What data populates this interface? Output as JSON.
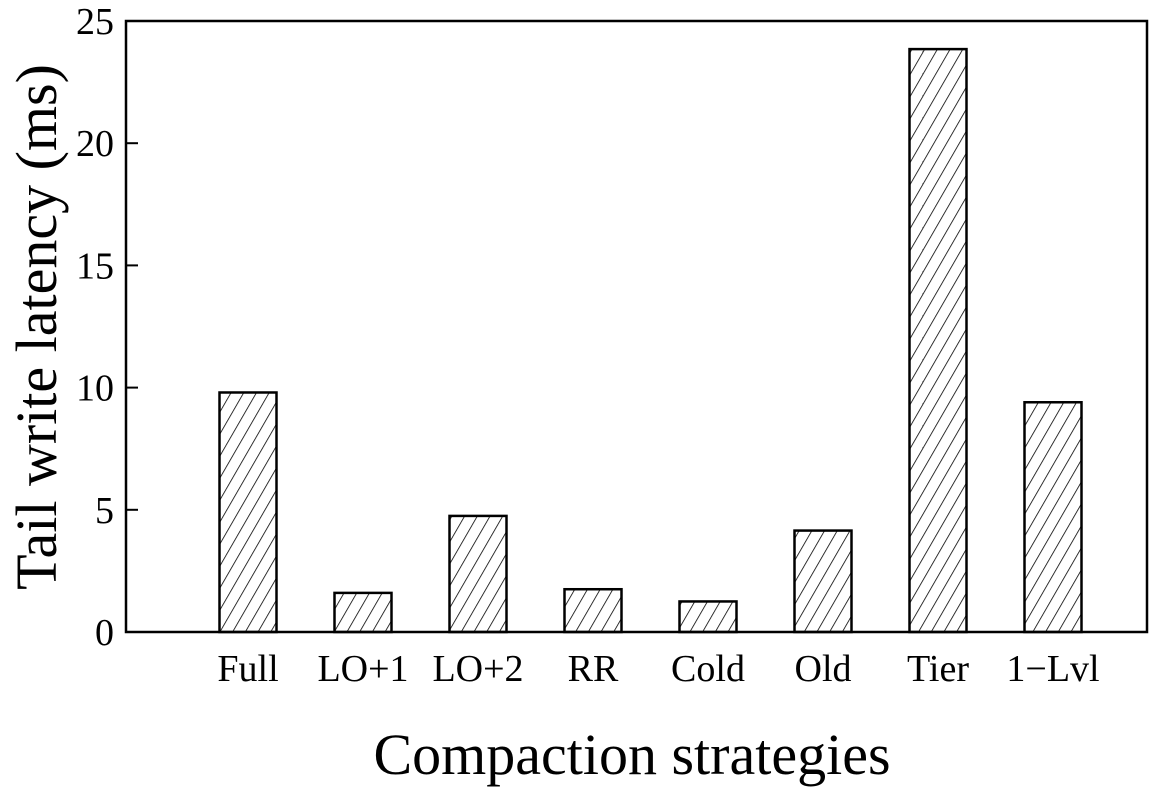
{
  "chart_data": {
    "type": "bar",
    "title": "",
    "xlabel": "Compaction strategies",
    "ylabel": "Tail write latency (ms)",
    "categories": [
      "Full",
      "LO+1",
      "LO+2",
      "RR",
      "Cold",
      "Old",
      "Tier",
      "1−Lvl"
    ],
    "values": [
      9.8,
      1.6,
      4.75,
      1.75,
      1.25,
      4.15,
      23.85,
      9.4
    ],
    "ylim": [
      0,
      25
    ],
    "yticks": [
      "0",
      "5",
      "10",
      "15",
      "20",
      "25"
    ],
    "grid": false,
    "legend": "none",
    "bar_fill": "hatched",
    "colors": {
      "bar_stroke": "#000000",
      "hatch": "#000000",
      "background": "#ffffff"
    }
  }
}
